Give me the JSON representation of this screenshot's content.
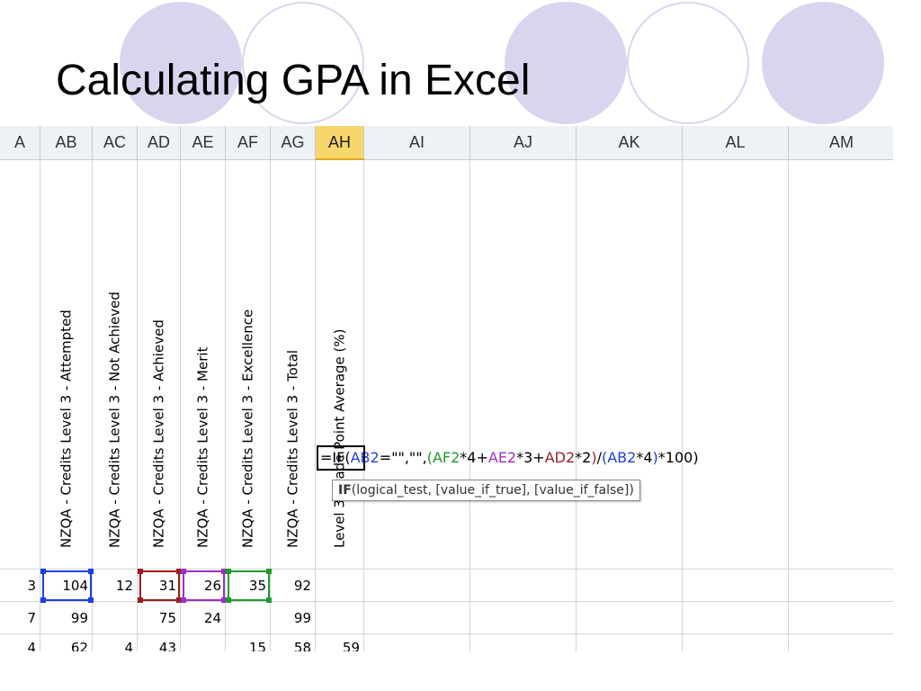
{
  "slide_title": "Calculating GPA in Excel",
  "colors": {
    "decor": "#d7d6ee",
    "ref_ab": "#1f3fe0",
    "ref_ad": "#9a1f1f",
    "ref_ae": "#9b2fc9",
    "ref_af": "#1f9a2f",
    "active_header": "#f8d66c"
  },
  "sheet": {
    "columns": [
      "A",
      "AB",
      "AC",
      "AD",
      "AE",
      "AF",
      "AG",
      "AH",
      "AI",
      "AJ",
      "AK",
      "AL",
      "AM"
    ],
    "active_column": "AH",
    "header_row": [
      "",
      "NZQA - Credits Level 3 - Attempted",
      "NZQA - Credits Level 3 - Not Achieved",
      "NZQA - Credits Level 3 - Achieved",
      "NZQA - Credits Level 3 - Merit",
      "NZQA - Credits Level 3 - Excellence",
      "NZQA - Credits Level 3 - Total",
      "Level 3 Grade Point Average (%)",
      "",
      "",
      "",
      "",
      ""
    ],
    "rows": [
      [
        "3",
        "104",
        "12",
        "31",
        "26",
        "35",
        "92",
        "",
        "",
        "",
        "",
        "",
        ""
      ],
      [
        "7",
        "99",
        "",
        "75",
        "24",
        "",
        "99",
        "",
        "",
        "",
        "",
        "",
        ""
      ],
      [
        "4",
        "62",
        "4",
        "43",
        "",
        "15",
        "58",
        "59",
        "",
        "",
        "",
        "",
        ""
      ]
    ]
  },
  "formula": {
    "tokens": [
      {
        "text": "=IF(",
        "color": "#000000"
      },
      {
        "text": "AB2",
        "color": "#1f3fe0"
      },
      {
        "text": "=\"\",\"\",",
        "color": "#000000"
      },
      {
        "text": "(",
        "color": "#1f9a2f"
      },
      {
        "text": "AF2",
        "color": "#1f9a2f"
      },
      {
        "text": "*4+",
        "color": "#000000"
      },
      {
        "text": "AE2",
        "color": "#9b2fc9"
      },
      {
        "text": "*3+",
        "color": "#000000"
      },
      {
        "text": "AD2",
        "color": "#9a1f1f"
      },
      {
        "text": "*2",
        "color": "#000000"
      },
      {
        "text": ")",
        "color": "#9a1f1f"
      },
      {
        "text": "/",
        "color": "#000000"
      },
      {
        "text": "(",
        "color": "#1f3fe0"
      },
      {
        "text": "AB2",
        "color": "#1f3fe0"
      },
      {
        "text": "*4",
        "color": "#000000"
      },
      {
        "text": ")",
        "color": "#1f3fe0"
      },
      {
        "text": "*100)",
        "color": "#000000"
      }
    ]
  },
  "tooltip": {
    "fn": "IF",
    "args": "(logical_test, [value_if_true], [value_if_false])"
  }
}
